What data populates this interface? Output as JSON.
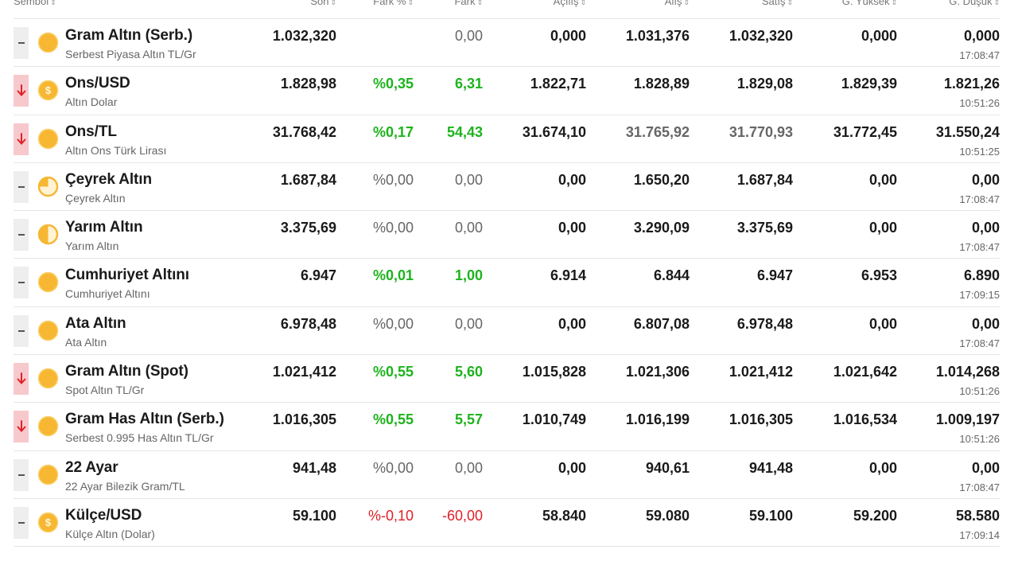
{
  "header": {
    "symbol": "Sembol",
    "last": "Son",
    "change_pct": "Fark %",
    "change": "Fark",
    "open": "Açılış",
    "bid": "Alış",
    "ask": "Satış",
    "high": "G. Yüksek",
    "low": "G. Düşük",
    "sort_glyph": "⇕"
  },
  "colors": {
    "positive": "#1db31d",
    "negative": "#e0202a",
    "coin": "#f7b733",
    "down_indicator_bg": "#f7c9cc"
  },
  "rows": [
    {
      "trend": "flat",
      "coin": "full",
      "name": "Gram Altın (Serb.)",
      "desc": "Serbest Piyasa Altın TL/Gr",
      "last": "1.032,320",
      "change_pct": "",
      "change": "0,00",
      "open": "0,000",
      "bid": "1.031,376",
      "ask": "1.032,320",
      "high": "0,000",
      "low": "0,000",
      "time": "17:08:47"
    },
    {
      "trend": "down",
      "coin": "dollar",
      "name": "Ons/USD",
      "desc": "Altın Dolar",
      "last": "1.828,98",
      "change_pct": "%0,35",
      "change": "6,31",
      "open": "1.822,71",
      "bid": "1.828,89",
      "ask": "1.829,08",
      "high": "1.829,39",
      "low": "1.821,26",
      "time": "10:51:26"
    },
    {
      "trend": "down",
      "coin": "full",
      "name": "Ons/TL",
      "desc": "Altın Ons Türk Lirası",
      "last": "31.768,42",
      "change_pct": "%0,17",
      "change": "54,43",
      "open": "31.674,10",
      "bid": "31.765,92",
      "ask": "31.770,93",
      "high": "31.772,45",
      "low": "31.550,24",
      "time": "10:51:25"
    },
    {
      "trend": "flat",
      "coin": "quarter",
      "name": "Çeyrek Altın",
      "desc": "Çeyrek Altın",
      "last": "1.687,84",
      "change_pct": "%0,00",
      "change": "0,00",
      "open": "0,00",
      "bid": "1.650,20",
      "ask": "1.687,84",
      "high": "0,00",
      "low": "0,00",
      "time": "17:08:47"
    },
    {
      "trend": "flat",
      "coin": "half",
      "name": "Yarım Altın",
      "desc": "Yarım Altın",
      "last": "3.375,69",
      "change_pct": "%0,00",
      "change": "0,00",
      "open": "0,00",
      "bid": "3.290,09",
      "ask": "3.375,69",
      "high": "0,00",
      "low": "0,00",
      "time": "17:08:47"
    },
    {
      "trend": "flat",
      "coin": "full",
      "name": "Cumhuriyet Altını",
      "desc": "Cumhuriyet Altını",
      "last": "6.947",
      "change_pct": "%0,01",
      "change": "1,00",
      "open": "6.914",
      "bid": "6.844",
      "ask": "6.947",
      "high": "6.953",
      "low": "6.890",
      "time": "17:09:15"
    },
    {
      "trend": "flat",
      "coin": "full",
      "name": "Ata Altın",
      "desc": "Ata Altın",
      "last": "6.978,48",
      "change_pct": "%0,00",
      "change": "0,00",
      "open": "0,00",
      "bid": "6.807,08",
      "ask": "6.978,48",
      "high": "0,00",
      "low": "0,00",
      "time": "17:08:47"
    },
    {
      "trend": "down",
      "coin": "full",
      "name": "Gram Altın (Spot)",
      "desc": "Spot Altın TL/Gr",
      "last": "1.021,412",
      "change_pct": "%0,55",
      "change": "5,60",
      "open": "1.015,828",
      "bid": "1.021,306",
      "ask": "1.021,412",
      "high": "1.021,642",
      "low": "1.014,268",
      "time": "10:51:26"
    },
    {
      "trend": "down",
      "coin": "full",
      "name": "Gram Has Altın (Serb.)",
      "desc": "Serbest 0.995 Has Altın TL/Gr",
      "last": "1.016,305",
      "change_pct": "%0,55",
      "change": "5,57",
      "open": "1.010,749",
      "bid": "1.016,199",
      "ask": "1.016,305",
      "high": "1.016,534",
      "low": "1.009,197",
      "time": "10:51:26"
    },
    {
      "trend": "flat",
      "coin": "full",
      "name": "22 Ayar",
      "desc": "22 Ayar Bilezik Gram/TL",
      "last": "941,48",
      "change_pct": "%0,00",
      "change": "0,00",
      "open": "0,00",
      "bid": "940,61",
      "ask": "941,48",
      "high": "0,00",
      "low": "0,00",
      "time": "17:08:47"
    },
    {
      "trend": "flat",
      "coin": "dollar",
      "name": "Külçe/USD",
      "desc": "Külçe Altın (Dolar)",
      "last": "59.100",
      "change_pct": "%-0,10",
      "change": "-60,00",
      "open": "58.840",
      "bid": "59.080",
      "ask": "59.100",
      "high": "59.200",
      "low": "58.580",
      "time": "17:09:14"
    }
  ]
}
